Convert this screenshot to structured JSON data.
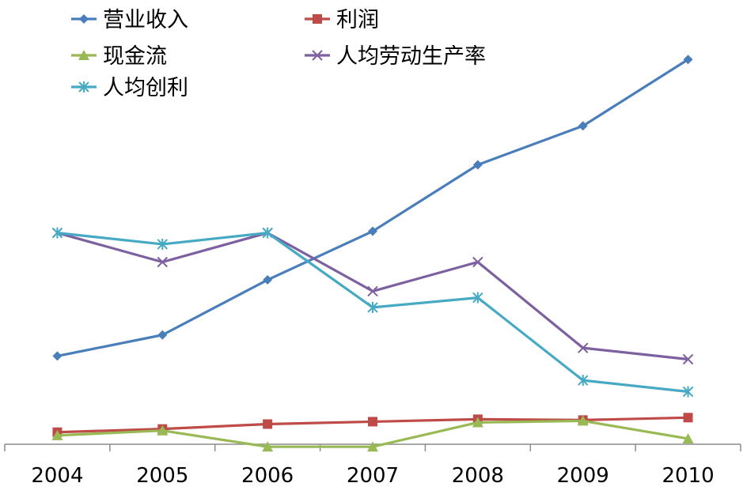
{
  "chart_data": {
    "type": "line",
    "title": "",
    "xlabel": "",
    "ylabel": "",
    "categories": [
      "2004",
      "2005",
      "2006",
      "2007",
      "2008",
      "2009",
      "2010"
    ],
    "ylim": [
      -5,
      260
    ],
    "grid": false,
    "legend_position": "top-left",
    "series": [
      {
        "name": "营业收入",
        "color": "#4A7EBB",
        "marker": "diamond",
        "values": [
          52,
          65,
          99,
          129,
          170,
          194,
          235
        ]
      },
      {
        "name": "利润",
        "color": "#BE4B48",
        "marker": "square",
        "values": [
          5,
          7,
          10,
          11.5,
          13,
          12.5,
          14
        ]
      },
      {
        "name": "现金流",
        "color": "#98B954",
        "marker": "triangle",
        "values": [
          3,
          6,
          -4,
          -4,
          11,
          12,
          1
        ]
      },
      {
        "name": "人均劳动生产率",
        "color": "#7D60A0",
        "marker": "x",
        "values": [
          128,
          110,
          128,
          92,
          110,
          57,
          50
        ]
      },
      {
        "name": "人均创利",
        "color": "#46AAC5",
        "marker": "star",
        "values": [
          128,
          121,
          128,
          82,
          88,
          37,
          30
        ]
      }
    ]
  }
}
